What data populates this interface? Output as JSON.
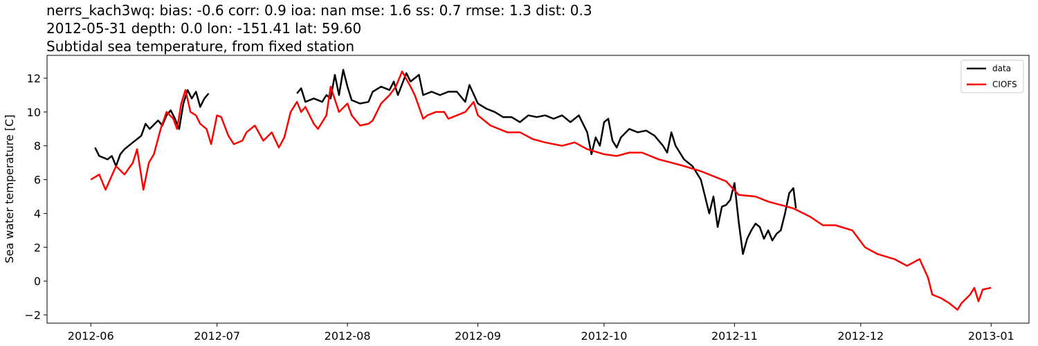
{
  "chart_data": {
    "type": "line",
    "title": [
      "nerrs_kach3wq: bias: -0.6  corr: 0.9  ioa: nan  mse: 1.6  ss: 0.7  rmse: 1.3  dist: 0.3",
      "2012-05-31 depth: 0.0 lon: -151.41 lat: 59.60",
      "Subtidal sea temperature, from fixed station"
    ],
    "ylabel": "Sea water temperature [C]",
    "xlim": [
      -10.4,
      223
    ],
    "ylim": [
      -2.49,
      13.35
    ],
    "xticks": [
      {
        "value": 0,
        "label": "2012-06"
      },
      {
        "value": 30,
        "label": "2012-07"
      },
      {
        "value": 61,
        "label": "2012-08"
      },
      {
        "value": 92,
        "label": "2012-09"
      },
      {
        "value": 122,
        "label": "2012-10"
      },
      {
        "value": 153,
        "label": "2012-11"
      },
      {
        "value": 183,
        "label": "2012-12"
      },
      {
        "value": 214,
        "label": "2013-01"
      }
    ],
    "yticks": [
      {
        "value": -2,
        "label": "−2"
      },
      0,
      2,
      4,
      6,
      8,
      10,
      12
    ],
    "legend": "upper right",
    "series": [
      {
        "name": "data",
        "color": "#000000",
        "x": [
          1,
          2,
          4,
          5,
          6,
          7,
          8,
          10,
          12,
          13,
          14,
          16,
          17,
          18,
          19,
          20,
          21,
          22,
          23,
          24,
          25,
          26,
          27,
          28,
          38,
          49,
          50,
          51,
          53,
          55,
          56,
          57,
          58,
          59,
          60,
          61,
          62,
          64,
          66,
          67,
          69,
          71,
          72,
          73,
          75,
          76,
          78,
          79,
          81,
          83,
          85,
          87,
          89,
          90,
          92,
          94,
          96,
          98,
          100,
          102,
          104,
          106,
          108,
          110,
          112,
          114,
          116,
          118,
          119,
          120,
          121,
          122,
          123,
          124,
          125,
          126,
          128,
          130,
          132,
          134,
          136,
          137,
          138,
          139,
          141,
          143,
          145,
          146,
          147,
          148,
          149,
          150,
          151,
          152,
          153,
          154,
          155,
          156,
          157,
          158,
          159,
          160,
          161,
          162,
          163,
          164,
          165,
          166,
          167,
          167.6
        ],
        "values": [
          7.9,
          7.4,
          7.2,
          7.4,
          6.8,
          7.5,
          7.8,
          8.2,
          8.6,
          9.3,
          9.0,
          9.5,
          9.2,
          9.8,
          10.1,
          9.6,
          9.0,
          10.5,
          11.3,
          10.8,
          11.2,
          10.3,
          10.8,
          11.1,
          null,
          11.1,
          11.4,
          10.6,
          10.8,
          10.6,
          11.0,
          10.8,
          12.2,
          11.0,
          12.5,
          11.5,
          10.7,
          10.5,
          10.6,
          11.2,
          11.5,
          11.3,
          11.8,
          11.0,
          12.3,
          11.8,
          12.2,
          11.0,
          11.2,
          11.0,
          11.2,
          11.2,
          10.6,
          11.6,
          10.5,
          10.2,
          10.0,
          9.7,
          9.7,
          9.4,
          9.8,
          9.7,
          9.8,
          9.6,
          9.8,
          9.4,
          9.8,
          8.8,
          7.5,
          8.5,
          8.0,
          9.4,
          9.6,
          8.3,
          7.9,
          8.5,
          9.0,
          8.8,
          8.9,
          8.6,
          8.0,
          7.6,
          8.8,
          8.0,
          7.2,
          6.8,
          6.0,
          5.0,
          4.0,
          5.0,
          3.2,
          4.4,
          4.5,
          4.8,
          5.8,
          3.5,
          1.6,
          2.5,
          3.0,
          3.4,
          3.2,
          2.5,
          3.0,
          2.4,
          2.8,
          3.0,
          4.0,
          5.2,
          5.5,
          4.3
        ]
      },
      {
        "name": "CIOFS",
        "color": "#ff0000",
        "x": [
          0,
          2,
          3.5,
          6,
          8,
          10,
          11,
          12.5,
          13.8,
          15,
          16.6,
          18,
          19.6,
          20.5,
          21.5,
          22.5,
          23.7,
          25,
          26,
          27.5,
          28.6,
          30,
          31,
          32.7,
          34,
          36,
          37,
          39,
          41,
          43,
          44.7,
          46,
          47.5,
          49,
          50,
          51,
          53,
          54,
          56,
          57,
          59,
          61,
          62,
          64,
          66,
          67,
          69,
          71,
          72.5,
          74,
          76,
          77,
          79,
          80,
          82,
          84,
          85,
          87,
          89,
          91,
          92,
          95,
          99,
          102,
          105,
          108,
          112,
          115,
          118,
          122,
          125,
          128,
          131,
          135,
          138,
          141,
          145,
          148,
          151,
          154,
          158,
          161,
          164,
          167,
          171,
          174,
          177,
          181,
          184,
          187,
          191,
          194,
          197,
          199,
          200,
          202,
          204,
          206,
          207,
          209,
          210,
          211,
          212,
          214
        ],
        "values": [
          6.0,
          6.3,
          5.4,
          6.8,
          6.3,
          7.0,
          7.8,
          5.4,
          7.0,
          7.5,
          9.0,
          10.0,
          9.6,
          9.0,
          10.5,
          11.3,
          10.0,
          9.8,
          9.3,
          9.0,
          8.1,
          9.8,
          9.7,
          8.6,
          8.1,
          8.3,
          8.8,
          9.2,
          8.3,
          8.8,
          7.9,
          8.5,
          10.0,
          10.6,
          10.0,
          10.3,
          9.3,
          9.0,
          9.8,
          11.5,
          10.0,
          10.5,
          9.8,
          9.2,
          9.3,
          9.5,
          10.5,
          11.0,
          11.5,
          12.4,
          11.5,
          11.0,
          9.6,
          9.8,
          10.0,
          10.0,
          9.6,
          9.8,
          10.0,
          10.6,
          9.8,
          9.2,
          8.8,
          8.8,
          8.4,
          8.2,
          8.0,
          8.2,
          7.8,
          7.5,
          7.4,
          7.6,
          7.6,
          7.2,
          7.0,
          6.8,
          6.5,
          6.2,
          5.9,
          5.1,
          5.0,
          4.7,
          4.5,
          4.3,
          3.8,
          3.3,
          3.3,
          3.0,
          2.0,
          1.6,
          1.3,
          0.9,
          1.3,
          0.2,
          -0.8,
          -1.0,
          -1.3,
          -1.7,
          -1.3,
          -0.8,
          -0.4,
          -1.2,
          -0.5,
          -0.4
        ]
      }
    ]
  }
}
